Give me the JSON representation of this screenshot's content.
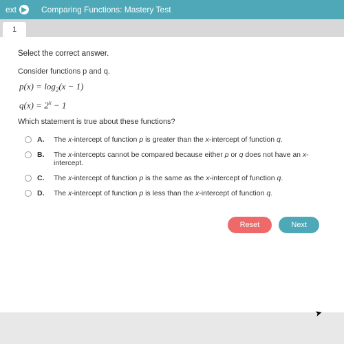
{
  "topbar": {
    "nav_label": "ext",
    "title": "Comparing Functions: Mastery Test"
  },
  "tab": {
    "label": "1"
  },
  "content": {
    "instruction": "Select the correct answer.",
    "consider": "Consider functions p and q.",
    "eq1_html": "p(x) = log<sub>2</sub>(x − 1)",
    "eq2_html": "q(x) = 2<sup>x</sup> − 1",
    "question": "Which statement is true about these functions?",
    "choices": [
      {
        "letter": "A.",
        "text_html": "The <em>x</em>-intercept of function <em>p</em> is greater than the <em>x</em>-intercept of function <em>q</em>."
      },
      {
        "letter": "B.",
        "text_html": "The <em>x</em>-intercepts cannot be compared because either <em>p</em> or <em>q</em> does not have an <em>x</em>-intercept."
      },
      {
        "letter": "C.",
        "text_html": "The <em>x</em>-intercept of function <em>p</em> is the same as the <em>x</em>-intercept of function <em>q</em>."
      },
      {
        "letter": "D.",
        "text_html": "The <em>x</em>-intercept of function <em>p</em> is less than the <em>x</em>-intercept of function <em>q</em>."
      }
    ]
  },
  "buttons": {
    "reset": "Reset",
    "next": "Next"
  },
  "colors": {
    "brand": "#4fa8b8",
    "reset": "#ee6a6a",
    "page_bg": "#e8e8e8",
    "content_bg": "#ffffff"
  }
}
